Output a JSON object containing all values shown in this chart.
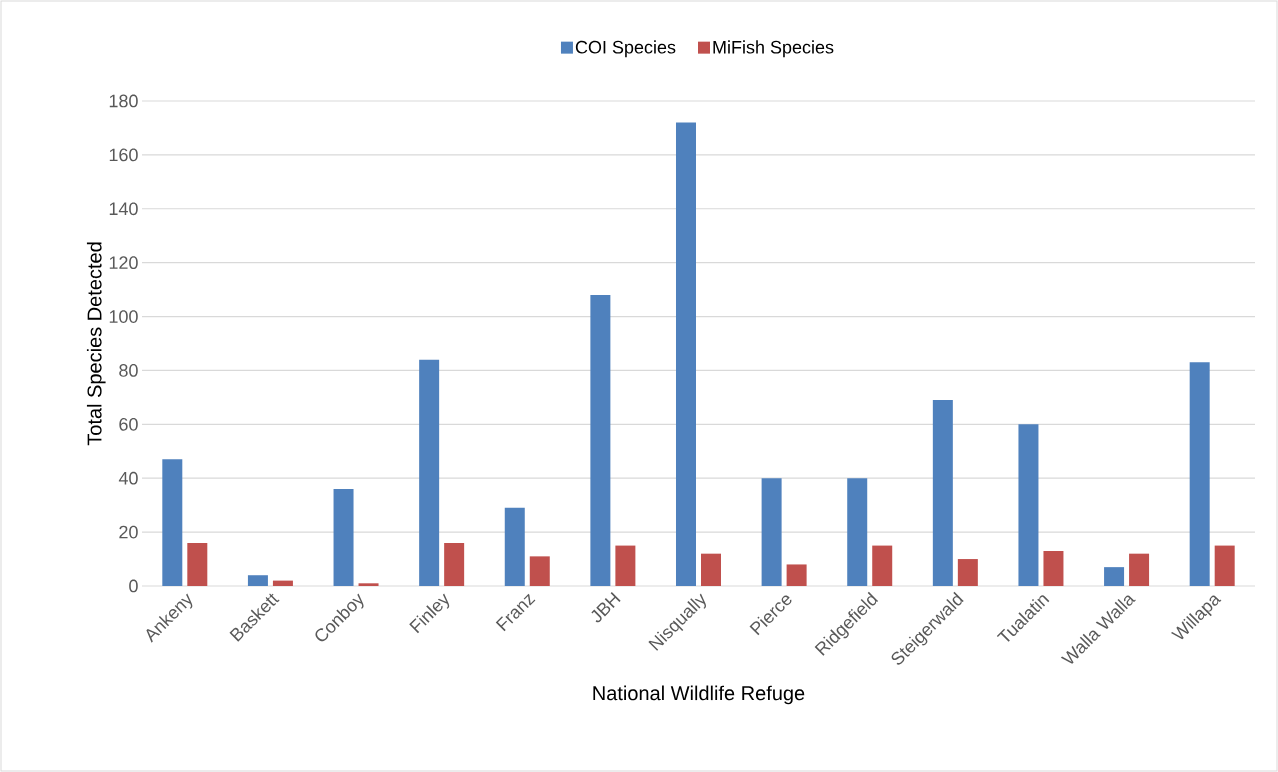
{
  "chart_data": {
    "type": "bar",
    "xlabel": "National Wildlife Refuge",
    "ylabel": "Total Species Detected",
    "categories": [
      "Ankeny",
      "Baskett",
      "Conboy",
      "Finley",
      "Franz",
      "JBH",
      "Nisqually",
      "Pierce",
      "Ridgefield",
      "Steigerwald",
      "Tualatin",
      "Walla Walla",
      "Willapa"
    ],
    "series": [
      {
        "name": "COI Species",
        "color": "#4f81bd",
        "values": [
          47,
          4,
          36,
          84,
          29,
          108,
          172,
          40,
          40,
          69,
          60,
          7,
          83
        ]
      },
      {
        "name": "MiFish Species",
        "color": "#c0504d",
        "values": [
          16,
          2,
          1,
          16,
          11,
          15,
          12,
          8,
          15,
          10,
          13,
          12,
          15
        ]
      }
    ],
    "ylim": [
      0,
      180
    ],
    "yticks": [
      0,
      20,
      40,
      60,
      80,
      100,
      120,
      140,
      160,
      180
    ],
    "grid": "y",
    "legend": "top"
  }
}
